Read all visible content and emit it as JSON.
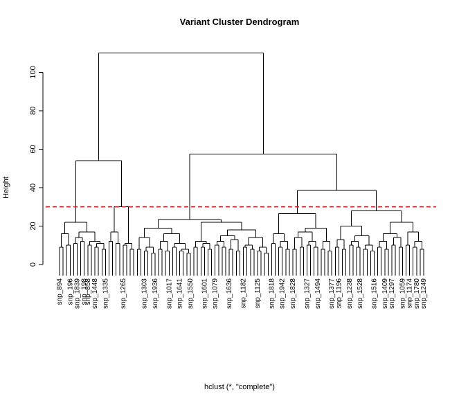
{
  "chart_data": {
    "type": "dendrogram",
    "title": "Variant Cluster Dendrogram",
    "ylabel": "Height",
    "xlabel": "hclust (*, \"complete\")",
    "ylim": [
      0,
      115
    ],
    "yticks": [
      0,
      20,
      40,
      60,
      80,
      100
    ],
    "cut_height": 30,
    "cut_color": "#e41a1c",
    "leaf_count": 110,
    "visible_leaf_labels": [
      {
        "leaf": 1,
        "text": "snp_894"
      },
      {
        "leaf": 4,
        "text": "snp_196"
      },
      {
        "leaf": 6,
        "text": "snp_1839"
      },
      {
        "leaf": 8,
        "text": "snp_198"
      },
      {
        "leaf": 10,
        "text": "snp_858"
      },
      {
        "leaf": 12,
        "text": "snp_1448"
      },
      {
        "leaf": 15,
        "text": "snp_1335"
      },
      {
        "leaf": 20,
        "text": "snp_1265"
      },
      {
        "leaf": 26,
        "text": "snp_1303"
      },
      {
        "leaf": 30,
        "text": "snp_1936"
      },
      {
        "leaf": 34,
        "text": "snp_1017"
      },
      {
        "leaf": 37,
        "text": "snp_1641"
      },
      {
        "leaf": 40,
        "text": "snp_1550"
      },
      {
        "leaf": 44,
        "text": "snp_1601"
      },
      {
        "leaf": 48,
        "text": "snp_1079"
      },
      {
        "leaf": 52,
        "text": "snp_1636"
      },
      {
        "leaf": 56,
        "text": "snp_1182"
      },
      {
        "leaf": 60,
        "text": "snp_1125"
      },
      {
        "leaf": 64,
        "text": "snp_1818"
      },
      {
        "leaf": 68,
        "text": "snp_1942"
      },
      {
        "leaf": 71,
        "text": "snp_1828"
      },
      {
        "leaf": 75,
        "text": "snp_1327"
      },
      {
        "leaf": 78,
        "text": "snp_1494"
      },
      {
        "leaf": 82,
        "text": "snp_1377"
      },
      {
        "leaf": 85,
        "text": "snp_1196"
      },
      {
        "leaf": 88,
        "text": "snp_1238"
      },
      {
        "leaf": 91,
        "text": "snp_1528"
      },
      {
        "leaf": 95,
        "text": "snp_1516"
      },
      {
        "leaf": 98,
        "text": "snp_1409"
      },
      {
        "leaf": 101,
        "text": "snp_1297"
      },
      {
        "leaf": 104,
        "text": "snp_1059"
      },
      {
        "leaf": 106,
        "text": "snp_1174"
      },
      {
        "leaf": 108,
        "text": "snp_1780"
      },
      {
        "leaf": 110,
        "text": "snp_1249"
      }
    ],
    "merges": [
      {
        "l": 1,
        "r": 2,
        "h": 9.5
      },
      {
        "l": 4,
        "r": 5,
        "h": 8.5
      },
      {
        "l": 6,
        "r": 7,
        "h": 13
      },
      {
        "l": 8,
        "r": 9,
        "h": 9.5
      },
      {
        "l": 10,
        "r": 11,
        "h": 11
      },
      {
        "l": 12,
        "r": 13,
        "h": 10.5
      },
      {
        "l": 15,
        "r": 16,
        "h": 10
      },
      {
        "l": 17,
        "r": 18,
        "h": 6.5
      },
      {
        "l": 19,
        "r": 20,
        "h": 8.5
      },
      {
        "l": 21,
        "r": 22,
        "h": 8
      },
      {
        "l": 23,
        "r": 24,
        "h": 6.5
      },
      {
        "l": 25,
        "r": 26,
        "h": 7.5
      },
      {
        "l": 27,
        "r": 28,
        "h": 8
      },
      {
        "l": 29,
        "r": 30,
        "h": 9
      },
      {
        "l": 31,
        "r": 32,
        "h": 7.5
      },
      {
        "l": 33,
        "r": 34,
        "h": 10
      },
      {
        "l": 35,
        "r": 36,
        "h": 11
      },
      {
        "l": 37,
        "r": 38,
        "h": 9
      },
      {
        "l": 39,
        "r": 40,
        "h": 10
      },
      {
        "l": 41,
        "r": 42,
        "h": 8.5
      },
      {
        "l": 43,
        "r": 44,
        "h": 9
      },
      {
        "l": 45,
        "r": 46,
        "h": 8.5
      },
      {
        "l": 47,
        "r": 48,
        "h": 8
      },
      {
        "l": 49,
        "r": 50,
        "h": 9
      },
      {
        "l": 51,
        "r": 52,
        "h": 8
      },
      {
        "l": 53,
        "r": 54,
        "h": 9
      },
      {
        "l": 55,
        "r": 56,
        "h": 8
      },
      {
        "l": 57,
        "r": 58,
        "h": 7.5
      },
      {
        "l": 59,
        "r": 60,
        "h": 8
      },
      {
        "l": 61,
        "r": 62,
        "h": 9
      },
      {
        "l": 63,
        "r": 64,
        "h": 7
      },
      {
        "l": 65,
        "r": 66,
        "h": 5.5
      },
      {
        "l": 67,
        "r": 68,
        "h": 13
      },
      {
        "l": 69,
        "r": 70,
        "h": 11
      },
      {
        "l": 71,
        "r": 72,
        "h": 8
      },
      {
        "l": 73,
        "r": 74,
        "h": 9
      },
      {
        "l": 75,
        "r": 76,
        "h": 9
      },
      {
        "l": 77,
        "r": 78,
        "h": 8
      },
      {
        "l": 79,
        "r": 80,
        "h": 9
      },
      {
        "l": 81,
        "r": 82,
        "h": 8
      },
      {
        "l": 83,
        "r": 84,
        "h": 10
      },
      {
        "l": 85,
        "r": 86,
        "h": 11
      },
      {
        "l": 87,
        "r": 88,
        "h": 9
      },
      {
        "l": 89,
        "r": 90,
        "h": 8
      },
      {
        "l": 91,
        "r": 92,
        "h": 10
      },
      {
        "l": 93,
        "r": 94,
        "h": 9
      },
      {
        "l": 95,
        "r": 96,
        "h": 8
      },
      {
        "l": 97,
        "r": 98,
        "h": 9
      },
      {
        "l": 99,
        "r": 100,
        "h": 8
      },
      {
        "l": 101,
        "r": 102,
        "h": 9
      },
      {
        "l": 103,
        "r": 104,
        "h": 10
      },
      {
        "l": 105,
        "r": 106,
        "h": 11
      },
      {
        "l": 107,
        "r": 108,
        "h": 8
      },
      {
        "l": 109,
        "r": 110,
        "h": 9
      },
      {
        "l": 3,
        "r": 54,
        "h": 12
      },
      {
        "l": 55,
        "r": 56,
        "h": 11
      },
      {
        "l": 57,
        "r": 58,
        "h": 16
      },
      {
        "l": 59,
        "r": 60,
        "h": 14
      },
      {
        "l": 61,
        "r": 62,
        "h": 12
      },
      {
        "l": 14,
        "r": 63,
        "h": 14
      },
      {
        "l": 64,
        "r": 65,
        "h": 11
      },
      {
        "l": 66,
        "r": 67,
        "h": 10
      },
      {
        "l": 68,
        "r": 69,
        "h": 12
      },
      {
        "l": 70,
        "r": 71,
        "h": 12
      },
      {
        "l": 72,
        "r": 73,
        "h": 11
      },
      {
        "l": 74,
        "r": 75,
        "h": 12
      },
      {
        "l": 76,
        "r": 77,
        "h": 10
      },
      {
        "l": 78,
        "r": 79,
        "h": 11
      },
      {
        "l": 80,
        "r": 81,
        "h": 11
      },
      {
        "l": 82,
        "r": 83,
        "h": 10
      },
      {
        "l": 84,
        "r": 85,
        "h": 9
      },
      {
        "l": 86,
        "r": 87,
        "h": 10
      },
      {
        "l": 88,
        "r": 89,
        "h": 11
      },
      {
        "l": 90,
        "r": 91,
        "h": 10
      },
      {
        "l": 92,
        "r": 93,
        "h": 10
      },
      {
        "l": 94,
        "r": 95,
        "h": 12
      },
      {
        "l": 96,
        "r": 97,
        "h": 11
      },
      {
        "l": 98,
        "r": 99,
        "h": 10
      },
      {
        "l": 100,
        "r": 101,
        "h": 11
      },
      {
        "l": 102,
        "r": 103,
        "h": 12
      },
      {
        "l": 104,
        "r": 105,
        "h": 10
      },
      {
        "l": 106,
        "r": 107,
        "h": 11
      },
      {
        "l": 108,
        "r": 109,
        "h": 12
      },
      {
        "l": 110,
        "r": 111,
        "h": 12
      },
      {
        "l": 112,
        "r": 113,
        "h": 10
      },
      {
        "l": 114,
        "r": 115,
        "h": 11
      },
      {
        "l": 116,
        "r": 117,
        "h": 12
      },
      {
        "l": 118,
        "r": 119,
        "h": 10
      },
      {
        "l": 120,
        "r": 121,
        "h": 9
      },
      {
        "l": 122,
        "r": 123,
        "h": 15
      },
      {
        "l": 124,
        "r": 125,
        "h": 14
      },
      {
        "l": 126,
        "r": 127,
        "h": 15
      },
      {
        "l": 128,
        "r": 129,
        "h": 13
      },
      {
        "l": 130,
        "r": 131,
        "h": 15
      },
      {
        "l": 132,
        "r": 133,
        "h": 14
      },
      {
        "l": 134,
        "r": 135,
        "h": 13
      },
      {
        "l": 136,
        "r": 137,
        "h": 15
      },
      {
        "l": 138,
        "r": 139,
        "h": 13
      },
      {
        "l": 140,
        "r": 141,
        "h": 14
      },
      {
        "l": 142,
        "r": 143,
        "h": 16
      },
      {
        "l": 144,
        "r": 145,
        "h": 15
      },
      {
        "l": 146,
        "r": 147,
        "h": 13
      },
      {
        "l": 148,
        "r": 149,
        "h": 14
      },
      {
        "l": 150,
        "r": 151,
        "h": 17
      },
      {
        "l": 152,
        "r": 153,
        "h": 18
      },
      {
        "l": 154,
        "r": 155,
        "h": 19
      },
      {
        "l": 156,
        "r": 157,
        "h": 17
      },
      {
        "l": 158,
        "r": 159,
        "h": 18
      },
      {
        "l": 160,
        "r": 161,
        "h": 20
      },
      {
        "l": 162,
        "r": 163,
        "h": 19
      },
      {
        "l": 164,
        "r": 165,
        "h": 22
      },
      {
        "l": 166,
        "r": 167,
        "h": 23.5
      },
      {
        "l": 168,
        "r": 169,
        "h": 26.5
      },
      {
        "l": 170,
        "r": 171,
        "h": 22
      },
      {
        "l": 172,
        "r": 173,
        "h": 28
      },
      {
        "l": 174,
        "r": 175,
        "h": 30
      },
      {
        "l": 176,
        "r": 177,
        "h": 38.5
      },
      {
        "l": 178,
        "r": 179,
        "h": 54
      },
      {
        "l": 180,
        "r": 181,
        "h": 57.5
      },
      {
        "l": 182,
        "r": 183,
        "h": 110
      }
    ]
  }
}
